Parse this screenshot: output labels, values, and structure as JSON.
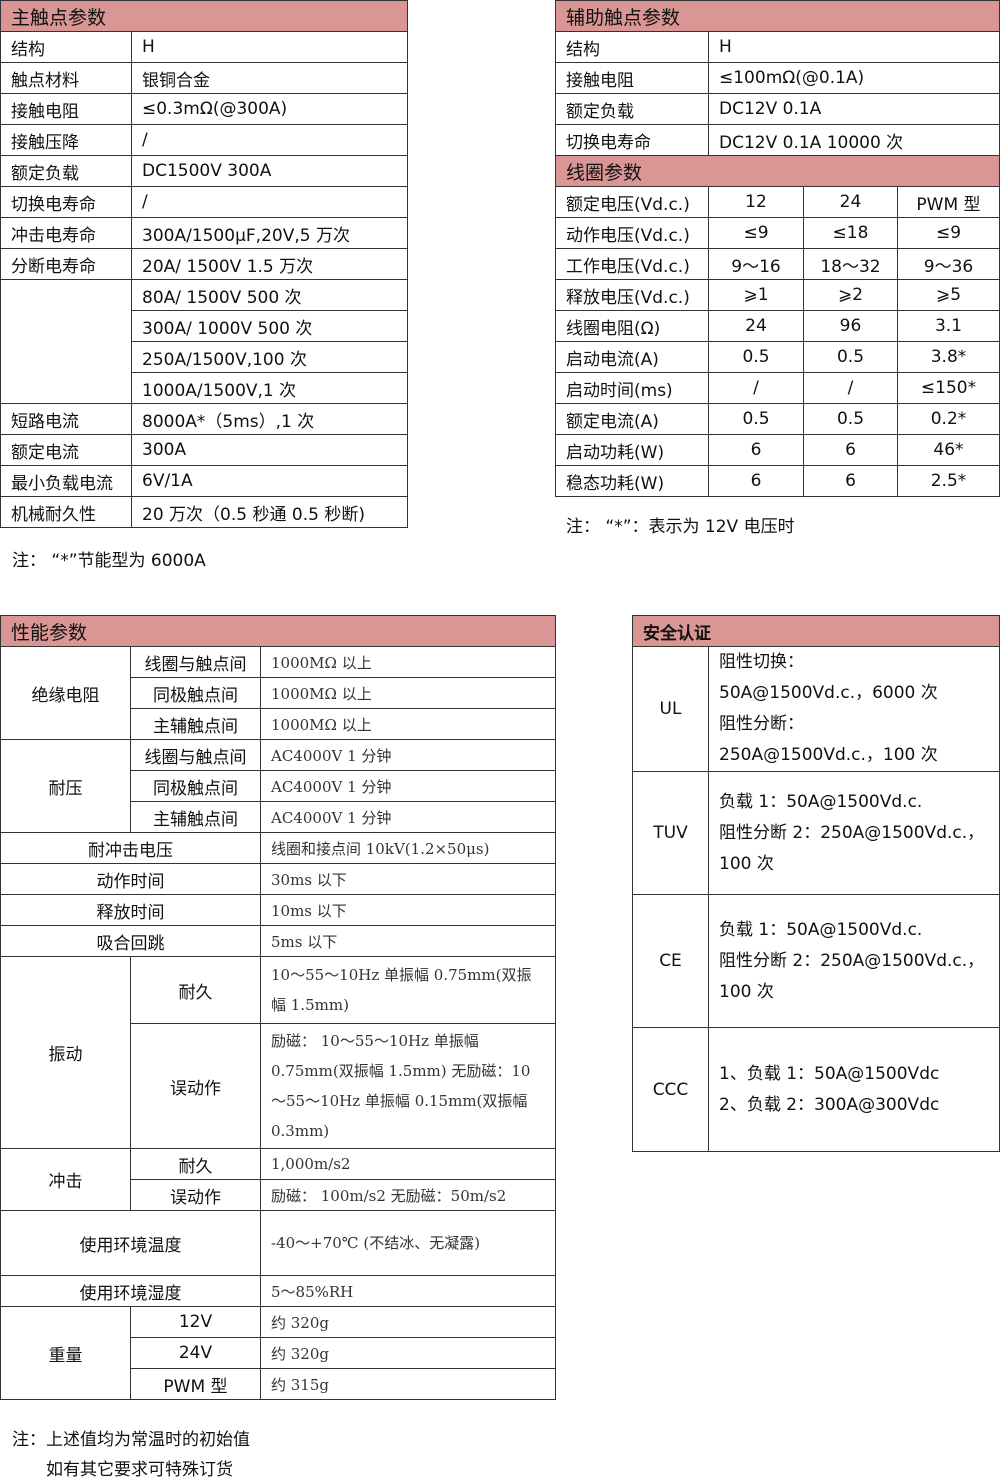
{
  "main": {
    "title": "主触点参数",
    "rows": [
      [
        "结构",
        "H"
      ],
      [
        "触点材料",
        "银铜合金"
      ],
      [
        "接触电阻",
        "  ≤0.3mΩ(@300A)"
      ],
      [
        "接触压降",
        "/"
      ],
      [
        "额定负载",
        "DC1500V 300A"
      ],
      [
        "切换电寿命",
        "/"
      ],
      [
        "冲击电寿命",
        "300A/1500μF,20V,5 万次"
      ],
      [
        "分断电寿命",
        "20A/ 1500V 1.5 万次"
      ],
      [
        "",
        "80A/ 1500V 500 次"
      ],
      [
        "",
        "300A/ 1000V 500 次"
      ],
      [
        "",
        "250A/1500V,100 次"
      ],
      [
        "",
        "1000A/1500V,1 次"
      ],
      [
        "短路电流",
        "8000A*（5ms）,1 次"
      ],
      [
        "额定电流",
        "300A"
      ],
      [
        "最小负载电流",
        "6V/1A"
      ],
      [
        "机械耐久性",
        "20 万次（0.5 秒通 0.5 秒断)"
      ]
    ],
    "note": "注：  “*”节能型为 6000A"
  },
  "aux": {
    "title": "辅助触点参数",
    "rows": [
      [
        "结构",
        "H"
      ],
      [
        "接触电阻",
        "≤100mΩ(@0.1A)"
      ],
      [
        "额定负载",
        "DC12V 0.1A"
      ],
      [
        "切换电寿命",
        "DC12V 0.1A 10000 次"
      ]
    ]
  },
  "coil": {
    "title": "线圈参数",
    "rows": [
      [
        "额定电压(Vd.c.)",
        "12",
        "24",
        "PWM 型"
      ],
      [
        "动作电压(Vd.c.)",
        "≤9",
        "≤18",
        "≤9"
      ],
      [
        "工作电压(Vd.c.)",
        "9～16",
        "18～32",
        "9～36"
      ],
      [
        "释放电压(Vd.c.)",
        "⩾1",
        "⩾2",
        "⩾5"
      ],
      [
        "线圈电阻(Ω)",
        "24",
        "96",
        "3.1"
      ],
      [
        "启动电流(A)",
        "0.5",
        "0.5",
        "3.8*"
      ],
      [
        "启动时间(ms)",
        "/",
        "/",
        "≤150*"
      ],
      [
        "额定电流(A)",
        "0.5",
        "0.5",
        "0.2*"
      ],
      [
        "启动功耗(W)",
        "6",
        "6",
        "46*"
      ],
      [
        "稳态功耗(W)",
        "6",
        "6",
        "2.5*"
      ]
    ],
    "note": "注：  “*”：表示为 12V 电压时"
  },
  "perf": {
    "title": "性能参数",
    "insulation": {
      "label": "绝缘电阻",
      "rows": [
        [
          "线圈与触点间",
          "1000MΩ 以上"
        ],
        [
          "同极触点间",
          "1000MΩ 以上"
        ],
        [
          "主辅触点间",
          "1000MΩ 以上"
        ]
      ]
    },
    "withstand": {
      "label": "耐压",
      "rows": [
        [
          "线圈与触点间",
          "AC4000V 1 分钟"
        ],
        [
          "同极触点间",
          "AC4000V 1 分钟"
        ],
        [
          "主辅触点间",
          "AC4000V 1 分钟"
        ]
      ]
    },
    "simple": [
      [
        "耐冲击电压",
        "线圈和接点间 10kV(1.2×50μs)"
      ],
      [
        "动作时间",
        "30ms 以下"
      ],
      [
        "释放时间",
        "10ms 以下"
      ],
      [
        "吸合回跳",
        "5ms 以下"
      ]
    ],
    "vibration": {
      "label": "振动",
      "rows": [
        [
          "耐久",
          "10～55～10Hz 单振幅 0.75mm(双振幅 1.5mm)"
        ],
        [
          "误动作",
          "励磁： 10～55～10Hz 单振幅 0.75mm(双振幅 1.5mm) 无励磁：10～55～10Hz 单振幅 0.15mm(双振幅 0.3mm)"
        ]
      ]
    },
    "shock": {
      "label": "冲击",
      "rows": [
        [
          "耐久",
          "1,000m/s2"
        ],
        [
          "误动作",
          "励磁： 100m/s2 无励磁：50m/s2"
        ]
      ]
    },
    "temp": [
      "使用环境温度",
      "-40～+70℃ (不结冰、无凝露)"
    ],
    "humidity": [
      "使用环境湿度",
      "5～85%RH"
    ],
    "weight": {
      "label": "重量",
      "rows": [
        [
          "12V",
          "约 320g"
        ],
        [
          "24V",
          "约 320g"
        ],
        [
          "PWM 型",
          "约 315g"
        ]
      ]
    },
    "note1": "注：上述值均为常温时的初始值",
    "note2": "如有其它要求可特殊订货"
  },
  "safety": {
    "title": "安全认证",
    "rows": [
      [
        "UL",
        "阻性切换：\n50A@1500Vd.c.，6000 次\n阻性分断：\n250A@1500Vd.c.，100 次"
      ],
      [
        "TUV",
        "负载 1：50A@1500Vd.c.\n阻性分断 2：250A@1500Vd.c.，\n100 次"
      ],
      [
        "CE",
        "负载 1：50A@1500Vd.c.\n阻性分断 2：250A@1500Vd.c.，\n100 次"
      ],
      [
        "CCC",
        "1、负载 1：50A@1500Vdc\n2、负载 2：300A@300Vdc"
      ]
    ]
  },
  "colors": {
    "header": "#d99694",
    "border": "#333333"
  }
}
